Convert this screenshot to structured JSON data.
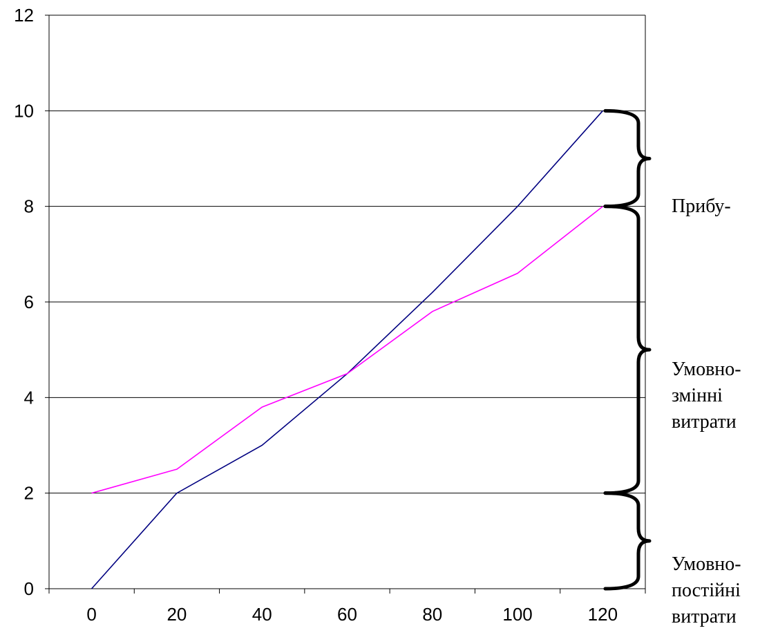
{
  "chart_data": {
    "type": "line",
    "title": "",
    "xlabel": "",
    "ylabel": "",
    "x": [
      0,
      20,
      40,
      60,
      80,
      100,
      120
    ],
    "xticks": [
      "0",
      "20",
      "40",
      "60",
      "80",
      "100",
      "120"
    ],
    "yticks": [
      "0",
      "2",
      "4",
      "6",
      "8",
      "10",
      "12"
    ],
    "xlim": [
      -10,
      130
    ],
    "ylim": [
      0,
      12
    ],
    "grid": "horizontal",
    "series": [
      {
        "color": "#000080",
        "values": [
          0,
          2,
          3,
          4.5,
          6.2,
          8,
          10
        ]
      },
      {
        "color": "#ff00ff",
        "values": [
          2,
          2.5,
          3.8,
          4.5,
          5.8,
          6.6,
          8
        ]
      }
    ],
    "braces": [
      {
        "from": 8,
        "to": 10
      },
      {
        "from": 2,
        "to": 8
      },
      {
        "from": 0,
        "to": 2
      }
    ],
    "annotations": {
      "profit": "Прибу-",
      "variable_line1": "Умовно-",
      "variable_line2": "змінні",
      "variable_line3": "витрати",
      "fixed_line1": "Умовно-",
      "fixed_line2": "постійні",
      "fixed_line3": "витрати"
    }
  }
}
